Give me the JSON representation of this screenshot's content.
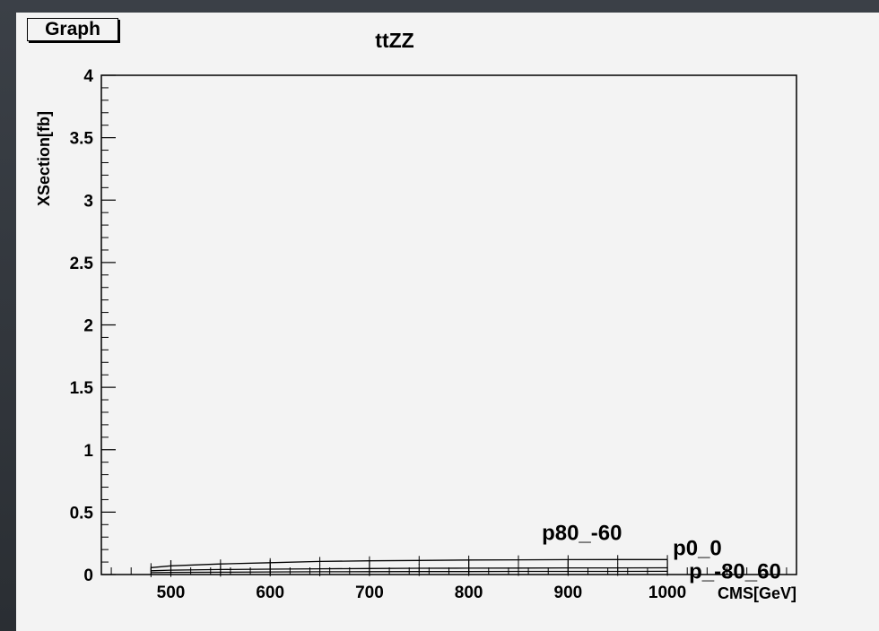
{
  "graph_tag": "Graph",
  "chart_data": {
    "type": "line",
    "title": "ttZZ",
    "xlabel": "CMS[GeV]",
    "ylabel": "XSection[fb]",
    "xlim": [
      430,
      1130
    ],
    "ylim": [
      0,
      4
    ],
    "x_ticks": [
      "500",
      "600",
      "700",
      "800",
      "900",
      "1000"
    ],
    "y_ticks": [
      "0",
      "0.5",
      "1",
      "1.5",
      "2",
      "2.5",
      "3",
      "3.5",
      "4"
    ],
    "grid": false,
    "series": [
      {
        "name": "p80_-60",
        "x": [
          480,
          500,
          550,
          600,
          650,
          700,
          750,
          800,
          850,
          900,
          950,
          1000
        ],
        "values": [
          0.055,
          0.07,
          0.085,
          0.095,
          0.105,
          0.11,
          0.113,
          0.116,
          0.118,
          0.119,
          0.12,
          0.12
        ]
      },
      {
        "name": "p0_0",
        "x": [
          480,
          500,
          550,
          600,
          650,
          700,
          750,
          800,
          850,
          900,
          950,
          1000
        ],
        "values": [
          0.03,
          0.035,
          0.04,
          0.043,
          0.046,
          0.048,
          0.05,
          0.051,
          0.052,
          0.053,
          0.053,
          0.054
        ]
      },
      {
        "name": "p_-80_60",
        "x": [
          480,
          500,
          550,
          600,
          650,
          700,
          750,
          800,
          850,
          900,
          950,
          1000
        ],
        "values": [
          0.015,
          0.017,
          0.019,
          0.021,
          0.022,
          0.023,
          0.024,
          0.024,
          0.025,
          0.025,
          0.025,
          0.026
        ]
      }
    ]
  }
}
